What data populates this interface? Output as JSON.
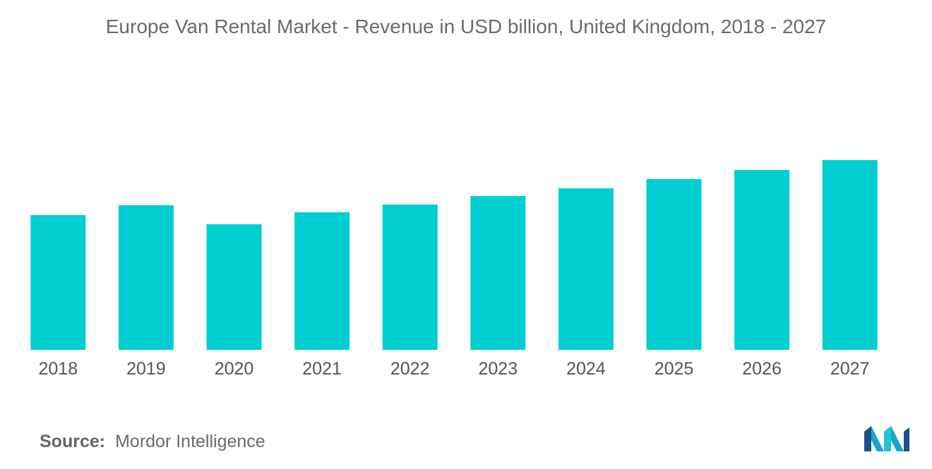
{
  "title": "Europe Van Rental Market - Revenue in USD billion, United Kingdom, 2018 - 2027",
  "source": {
    "label": "Source:",
    "text": "Mordor Intelligence"
  },
  "logo": {
    "icon": "mordor-intelligence-logo",
    "colors": [
      "#1f4e8c",
      "#1aa6c9",
      "#23c2d4"
    ]
  },
  "colors": {
    "bar": "#00ced1",
    "title": "#6b6b6b",
    "tick": "#555555"
  },
  "chart_data": {
    "type": "bar",
    "title": "Europe Van Rental Market - Revenue in USD billion, United Kingdom, 2018 - 2027",
    "xlabel": "",
    "ylabel": "",
    "categories": [
      "2018",
      "2019",
      "2020",
      "2021",
      "2022",
      "2023",
      "2024",
      "2025",
      "2026",
      "2027"
    ],
    "values": [
      1.91,
      2.05,
      1.78,
      1.95,
      2.06,
      2.18,
      2.29,
      2.42,
      2.55,
      2.69
    ],
    "ylim": [
      0,
      4.0
    ],
    "grid": false,
    "legend": "none"
  }
}
